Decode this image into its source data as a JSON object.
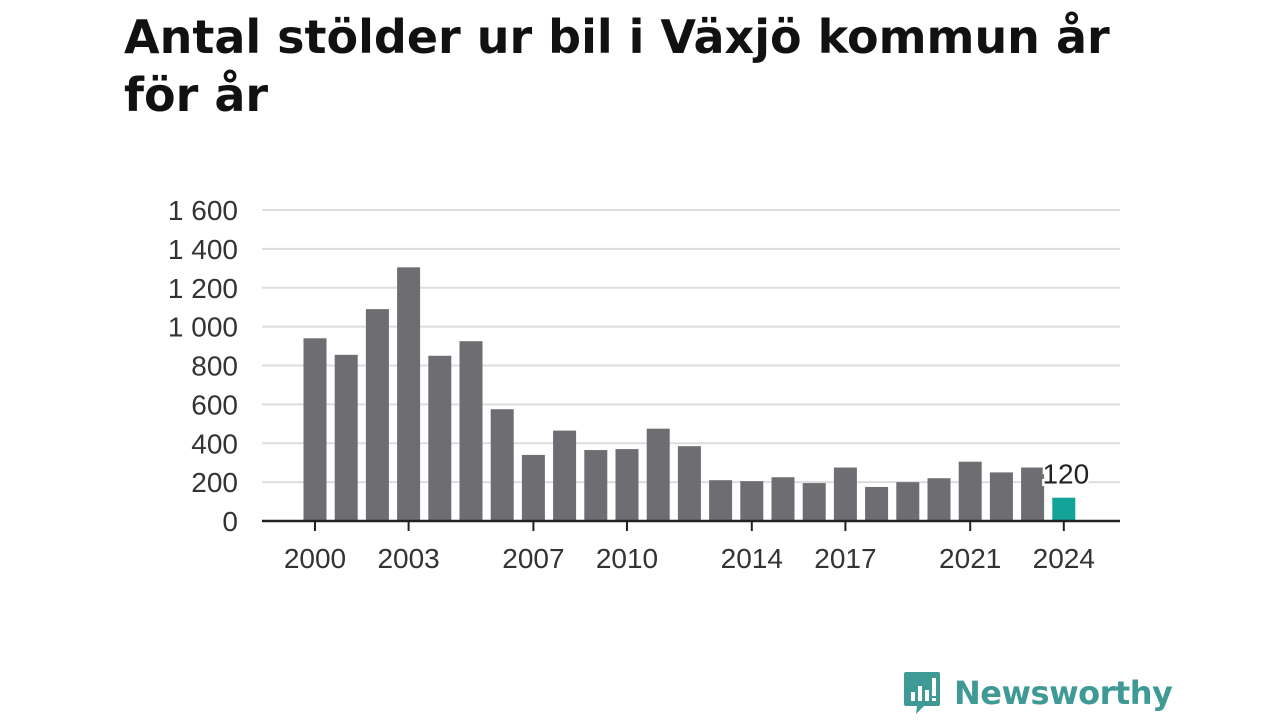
{
  "chart_data": {
    "type": "bar",
    "title": "Antal stölder ur bil i Växjö kommun år för år",
    "xlabel": "",
    "ylabel": "",
    "ylim": [
      0,
      1600
    ],
    "yticks": [
      0,
      200,
      400,
      600,
      800,
      1000,
      1200,
      1400,
      1600
    ],
    "ytick_labels": [
      "0",
      "200",
      "400",
      "600",
      "800",
      "1 000",
      "1 200",
      "1 400",
      "1 600"
    ],
    "xtick_labels": [
      "2000",
      "2003",
      "2007",
      "2010",
      "2014",
      "2017",
      "2021",
      "2024"
    ],
    "categories": [
      "2000",
      "2001",
      "2002",
      "2003",
      "2004",
      "2005",
      "2006",
      "2007",
      "2008",
      "2009",
      "2010",
      "2011",
      "2012",
      "2013",
      "2014",
      "2015",
      "2016",
      "2017",
      "2018",
      "2019",
      "2020",
      "2021",
      "2022",
      "2023",
      "2024"
    ],
    "values": [
      940,
      855,
      1090,
      1305,
      850,
      925,
      575,
      340,
      465,
      365,
      370,
      475,
      385,
      210,
      205,
      225,
      195,
      275,
      175,
      200,
      220,
      305,
      250,
      275,
      120
    ],
    "highlight_index": 24,
    "highlight_label": "120",
    "grid": true,
    "colors": {
      "bar": "#6e6d72",
      "highlight": "#14a398",
      "grid": "#dddddd",
      "axis": "#222222",
      "text": "#333333"
    }
  },
  "brand": {
    "name": "Newsworthy",
    "color": "#3f9a96"
  }
}
